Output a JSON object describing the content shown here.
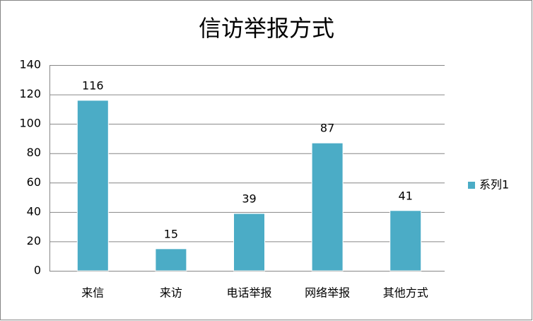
{
  "chart_data": {
    "type": "bar",
    "title": "信访举报方式",
    "categories": [
      "来信",
      "来访",
      "电话举报",
      "网络举报",
      "其他方式"
    ],
    "series": [
      {
        "name": "系列1",
        "color": "#4bacc6",
        "values": [
          116,
          15,
          39,
          87,
          41
        ]
      }
    ],
    "ylim": [
      0,
      140
    ],
    "yticks": [
      0,
      20,
      40,
      60,
      80,
      100,
      120,
      140
    ],
    "grid": true,
    "legend": "right",
    "data_labels": true
  }
}
